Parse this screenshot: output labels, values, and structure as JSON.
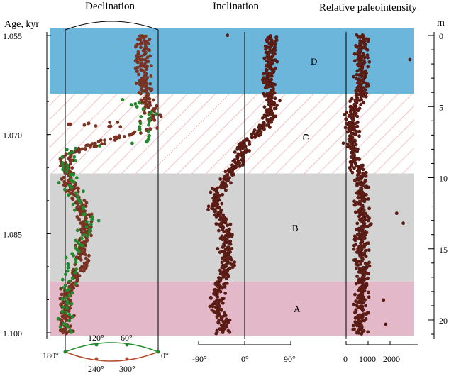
{
  "chart_data": {
    "type": "scatter",
    "panel_titles": {
      "declination": "Declination",
      "inclination": "Inclination",
      "paleointensity": "Relative paleointensity"
    },
    "left_axis": {
      "label": "Age, kyr",
      "ticks": [
        "1.055",
        "1.070",
        "1.085",
        "1.100"
      ],
      "range": [
        1.0535,
        1.1005
      ]
    },
    "right_axis": {
      "label": "m",
      "ticks": [
        "0",
        "5",
        "10",
        "15",
        "20"
      ],
      "range": [
        -1,
        21.5
      ]
    },
    "zones": [
      {
        "label": "D",
        "from_m": -1,
        "to_m": 4.1,
        "color": "#6db6db",
        "style": "fill"
      },
      {
        "label": "C",
        "from_m": 4.1,
        "to_m": 9.7,
        "color": "#f0a7a7",
        "style": "hatch"
      },
      {
        "label": "B",
        "from_m": 9.7,
        "to_m": 17.3,
        "color": "#d3d3d3",
        "style": "fill"
      },
      {
        "label": "A",
        "from_m": 17.3,
        "to_m": 21.1,
        "color": "#e3b8c8",
        "style": "fill"
      }
    ],
    "declination_axis": {
      "upper_ticks": [
        "180°",
        "120°",
        "60°",
        "0°"
      ],
      "lower_ticks": [
        "240°",
        "300°"
      ],
      "upper_color": "#1f8a2a",
      "lower_color": "#b04a2a"
    },
    "inclination_axis": {
      "ticks": [
        "-90°",
        "0°",
        "90°"
      ],
      "range": [
        -90,
        90
      ]
    },
    "paleointensity_axis": {
      "ticks": [
        "0",
        "1000",
        "2000"
      ],
      "range": [
        0,
        2000
      ]
    },
    "series": [
      {
        "color": "#6b2a1e",
        "values": "declination (brown points)"
      },
      {
        "color": "#1f8a2a",
        "values": "declination (green points)"
      }
    ],
    "declination_brown_trend": [
      [
        0,
        330
      ],
      [
        1,
        332
      ],
      [
        2,
        330
      ],
      [
        3,
        333
      ],
      [
        4,
        335
      ],
      [
        5,
        340
      ],
      [
        6,
        350
      ],
      [
        6.5,
        10
      ],
      [
        7,
        60
      ],
      [
        7.5,
        110
      ],
      [
        8,
        150
      ],
      [
        8.5,
        175
      ],
      [
        9,
        180
      ],
      [
        10,
        175
      ],
      [
        11,
        165
      ],
      [
        12,
        150
      ],
      [
        13,
        145
      ],
      [
        14,
        140
      ],
      [
        15,
        150
      ],
      [
        16,
        140
      ],
      [
        17,
        160
      ],
      [
        18,
        175
      ],
      [
        19,
        178
      ],
      [
        20,
        180
      ],
      [
        21,
        178
      ]
    ],
    "declination_green_trend": [
      [
        4.5,
        300
      ],
      [
        5,
        320
      ],
      [
        5.5,
        345
      ],
      [
        6.5,
        330
      ],
      [
        7.5,
        340
      ],
      [
        8,
        175
      ],
      [
        9,
        178
      ],
      [
        10.5,
        170
      ],
      [
        11.5,
        165
      ],
      [
        13,
        130
      ],
      [
        15,
        160
      ],
      [
        17.5,
        175
      ],
      [
        19,
        178
      ],
      [
        20.5,
        175
      ]
    ],
    "inclination_trend": [
      [
        0,
        55
      ],
      [
        1,
        50
      ],
      [
        2,
        52
      ],
      [
        3,
        45
      ],
      [
        4,
        48
      ],
      [
        5,
        55
      ],
      [
        6,
        45
      ],
      [
        7,
        25
      ],
      [
        7.5,
        0
      ],
      [
        8,
        -5
      ],
      [
        9,
        -15
      ],
      [
        10,
        -35
      ],
      [
        11,
        -50
      ],
      [
        12,
        -60
      ],
      [
        13,
        -45
      ],
      [
        14,
        -35
      ],
      [
        15,
        -40
      ],
      [
        16,
        -30
      ],
      [
        17,
        -45
      ],
      [
        18,
        -50
      ],
      [
        19,
        -55
      ],
      [
        20,
        -45
      ],
      [
        21,
        -40
      ]
    ],
    "paleointensity_trend": [
      [
        0,
        700
      ],
      [
        1,
        650
      ],
      [
        2,
        750
      ],
      [
        3,
        700
      ],
      [
        4,
        650
      ],
      [
        5,
        400
      ],
      [
        6,
        300
      ],
      [
        7,
        250
      ],
      [
        8,
        300
      ],
      [
        9,
        400
      ],
      [
        10,
        700
      ],
      [
        11,
        650
      ],
      [
        12,
        700
      ],
      [
        13,
        800
      ],
      [
        14,
        700
      ],
      [
        15,
        650
      ],
      [
        16,
        700
      ],
      [
        17,
        750
      ],
      [
        18,
        650
      ],
      [
        19,
        700
      ],
      [
        20,
        650
      ],
      [
        21,
        600
      ]
    ]
  }
}
